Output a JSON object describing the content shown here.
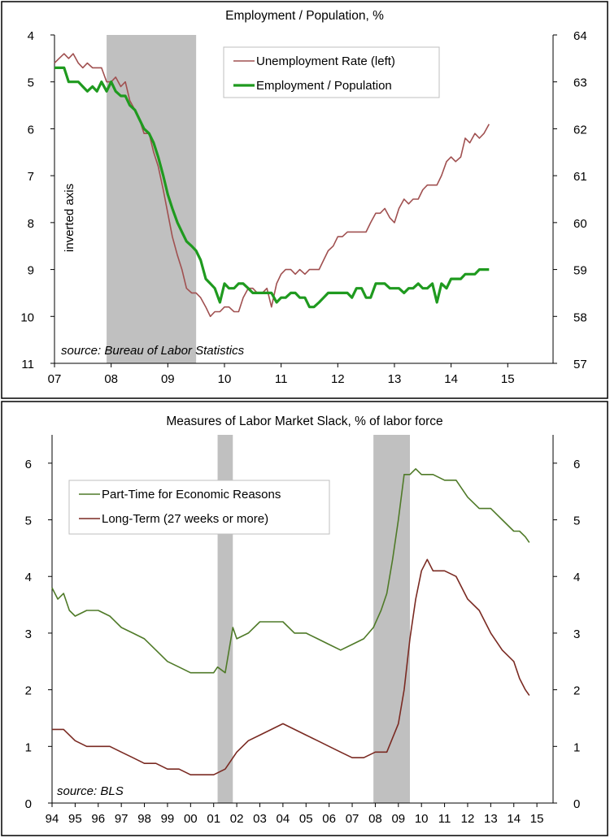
{
  "chart_data": [
    {
      "type": "line",
      "title": "Employment / Population, %",
      "annotation": "inverted axis",
      "source": "source: Bureau of Labor Statistics",
      "xlim": [
        2007.0,
        2015.8
      ],
      "x_ticks": [
        2007,
        2008,
        2009,
        2010,
        2011,
        2012,
        2013,
        2014,
        2015
      ],
      "x_tick_labels": [
        "07",
        "08",
        "09",
        "10",
        "11",
        "12",
        "13",
        "14",
        "15"
      ],
      "y_left": {
        "ylim": [
          4,
          11
        ],
        "inverted": true,
        "ticks": [
          4,
          5,
          6,
          7,
          8,
          9,
          10,
          11
        ]
      },
      "y_right": {
        "ylim": [
          57,
          64
        ],
        "ticks": [
          57,
          58,
          59,
          60,
          61,
          62,
          63,
          64
        ]
      },
      "recessions": [
        [
          2007.92,
          2009.5
        ]
      ],
      "legend": {
        "position": "top-right"
      },
      "series": [
        {
          "name": "Unemployment Rate (left)",
          "axis": "left",
          "color": "#a05050",
          "x": [
            2007.0,
            2007.08,
            2007.17,
            2007.25,
            2007.33,
            2007.42,
            2007.5,
            2007.58,
            2007.67,
            2007.75,
            2007.83,
            2007.92,
            2008.0,
            2008.08,
            2008.17,
            2008.25,
            2008.33,
            2008.42,
            2008.5,
            2008.58,
            2008.67,
            2008.75,
            2008.83,
            2008.92,
            2009.0,
            2009.08,
            2009.17,
            2009.25,
            2009.33,
            2009.42,
            2009.5,
            2009.58,
            2009.67,
            2009.75,
            2009.83,
            2009.92,
            2010.0,
            2010.08,
            2010.17,
            2010.25,
            2010.33,
            2010.42,
            2010.5,
            2010.58,
            2010.67,
            2010.75,
            2010.83,
            2010.92,
            2011.0,
            2011.08,
            2011.17,
            2011.25,
            2011.33,
            2011.42,
            2011.5,
            2011.58,
            2011.67,
            2011.75,
            2011.83,
            2011.92,
            2012.0,
            2012.08,
            2012.17,
            2012.25,
            2012.33,
            2012.42,
            2012.5,
            2012.58,
            2012.67,
            2012.75,
            2012.83,
            2012.92,
            2013.0,
            2013.08,
            2013.17,
            2013.25,
            2013.33,
            2013.42,
            2013.5,
            2013.58,
            2013.67,
            2013.75,
            2013.83,
            2013.92,
            2014.0,
            2014.08,
            2014.17,
            2014.25,
            2014.33,
            2014.42,
            2014.5,
            2014.58,
            2014.67
          ],
          "values": [
            4.6,
            4.5,
            4.4,
            4.5,
            4.4,
            4.6,
            4.7,
            4.6,
            4.7,
            4.7,
            4.7,
            5.0,
            5.0,
            4.9,
            5.1,
            5.0,
            5.4,
            5.6,
            5.8,
            6.1,
            6.1,
            6.5,
            6.8,
            7.3,
            7.8,
            8.3,
            8.7,
            9.0,
            9.4,
            9.5,
            9.5,
            9.6,
            9.8,
            10.0,
            9.9,
            9.9,
            9.8,
            9.8,
            9.9,
            9.9,
            9.6,
            9.4,
            9.4,
            9.5,
            9.5,
            9.4,
            9.8,
            9.3,
            9.1,
            9.0,
            9.0,
            9.1,
            9.0,
            9.1,
            9.0,
            9.0,
            9.0,
            8.8,
            8.6,
            8.5,
            8.3,
            8.3,
            8.2,
            8.2,
            8.2,
            8.2,
            8.2,
            8.0,
            7.8,
            7.8,
            7.7,
            7.9,
            8.0,
            7.7,
            7.5,
            7.6,
            7.5,
            7.5,
            7.3,
            7.2,
            7.2,
            7.2,
            7.0,
            6.7,
            6.6,
            6.7,
            6.6,
            6.2,
            6.3,
            6.1,
            6.2,
            6.1,
            5.9
          ]
        },
        {
          "name": "Employment / Population",
          "axis": "right",
          "color": "#1f9a1f",
          "x": [
            2007.0,
            2007.08,
            2007.17,
            2007.25,
            2007.33,
            2007.42,
            2007.5,
            2007.58,
            2007.67,
            2007.75,
            2007.83,
            2007.92,
            2008.0,
            2008.08,
            2008.17,
            2008.25,
            2008.33,
            2008.42,
            2008.5,
            2008.58,
            2008.67,
            2008.75,
            2008.83,
            2008.92,
            2009.0,
            2009.08,
            2009.17,
            2009.25,
            2009.33,
            2009.42,
            2009.5,
            2009.58,
            2009.67,
            2009.75,
            2009.83,
            2009.92,
            2010.0,
            2010.08,
            2010.17,
            2010.25,
            2010.33,
            2010.42,
            2010.5,
            2010.58,
            2010.67,
            2010.75,
            2010.83,
            2010.92,
            2011.0,
            2011.08,
            2011.17,
            2011.25,
            2011.33,
            2011.42,
            2011.5,
            2011.58,
            2011.67,
            2011.75,
            2011.83,
            2011.92,
            2012.0,
            2012.08,
            2012.17,
            2012.25,
            2012.33,
            2012.42,
            2012.5,
            2012.58,
            2012.67,
            2012.75,
            2012.83,
            2012.92,
            2013.0,
            2013.08,
            2013.17,
            2013.25,
            2013.33,
            2013.42,
            2013.5,
            2013.58,
            2013.67,
            2013.75,
            2013.83,
            2013.92,
            2014.0,
            2014.08,
            2014.17,
            2014.25,
            2014.33,
            2014.42,
            2014.5,
            2014.58,
            2014.67
          ],
          "values": [
            63.3,
            63.3,
            63.3,
            63.0,
            63.0,
            63.0,
            62.9,
            62.8,
            62.9,
            62.8,
            63.0,
            62.8,
            63.0,
            62.8,
            62.7,
            62.7,
            62.5,
            62.4,
            62.2,
            62.0,
            61.9,
            61.7,
            61.4,
            61.0,
            60.6,
            60.3,
            60.0,
            59.8,
            59.6,
            59.5,
            59.4,
            59.2,
            58.8,
            58.7,
            58.6,
            58.3,
            58.7,
            58.6,
            58.6,
            58.7,
            58.7,
            58.6,
            58.5,
            58.5,
            58.5,
            58.5,
            58.5,
            58.3,
            58.4,
            58.4,
            58.5,
            58.5,
            58.4,
            58.4,
            58.2,
            58.2,
            58.3,
            58.4,
            58.5,
            58.5,
            58.5,
            58.5,
            58.5,
            58.4,
            58.6,
            58.6,
            58.4,
            58.4,
            58.7,
            58.7,
            58.7,
            58.6,
            58.6,
            58.6,
            58.5,
            58.6,
            58.6,
            58.7,
            58.6,
            58.6,
            58.7,
            58.3,
            58.7,
            58.6,
            58.8,
            58.8,
            58.8,
            58.9,
            58.9,
            58.9,
            59.0,
            59.0,
            59.0
          ]
        }
      ]
    },
    {
      "type": "line",
      "title": "Measures of Labor Market Slack, % of labor force",
      "source": "source: BLS",
      "xlim": [
        1994.0,
        2015.7
      ],
      "x_ticks": [
        1994,
        1995,
        1996,
        1997,
        1998,
        1999,
        2000,
        2001,
        2002,
        2003,
        2004,
        2005,
        2006,
        2007,
        2008,
        2009,
        2010,
        2011,
        2012,
        2013,
        2014,
        2015
      ],
      "x_tick_labels": [
        "94",
        "95",
        "96",
        "97",
        "98",
        "99",
        "00",
        "01",
        "02",
        "03",
        "04",
        "05",
        "06",
        "07",
        "08",
        "09",
        "10",
        "11",
        "12",
        "13",
        "14",
        "15"
      ],
      "y_left": {
        "ylim": [
          0,
          6.5
        ],
        "ticks": [
          0,
          1,
          2,
          3,
          4,
          5,
          6
        ]
      },
      "y_right": {
        "ylim": [
          0,
          6.5
        ],
        "ticks": [
          0,
          1,
          2,
          3,
          4,
          5,
          6
        ]
      },
      "recessions": [
        [
          2001.17,
          2001.83
        ],
        [
          2007.92,
          2009.5
        ]
      ],
      "legend": {
        "position": "top-left"
      },
      "series": [
        {
          "name": "Part-Time for Economic Reasons",
          "color": "#4f7a28",
          "x": [
            1994.0,
            1994.25,
            1994.5,
            1994.75,
            1995.0,
            1995.5,
            1996.0,
            1996.5,
            1997.0,
            1997.5,
            1998.0,
            1998.5,
            1999.0,
            1999.5,
            2000.0,
            2000.5,
            2001.0,
            2001.17,
            2001.5,
            2001.83,
            2002.0,
            2002.5,
            2003.0,
            2003.5,
            2004.0,
            2004.5,
            2005.0,
            2005.5,
            2006.0,
            2006.5,
            2007.0,
            2007.5,
            2007.92,
            2008.25,
            2008.5,
            2008.75,
            2009.0,
            2009.25,
            2009.5,
            2009.75,
            2010.0,
            2010.5,
            2011.0,
            2011.5,
            2012.0,
            2012.5,
            2013.0,
            2013.5,
            2014.0,
            2014.25,
            2014.5,
            2014.67
          ],
          "values": [
            3.8,
            3.6,
            3.7,
            3.4,
            3.3,
            3.4,
            3.4,
            3.3,
            3.1,
            3.0,
            2.9,
            2.7,
            2.5,
            2.4,
            2.3,
            2.3,
            2.3,
            2.4,
            2.3,
            3.1,
            2.9,
            3.0,
            3.2,
            3.2,
            3.2,
            3.0,
            3.0,
            2.9,
            2.8,
            2.7,
            2.8,
            2.9,
            3.1,
            3.4,
            3.7,
            4.3,
            5.0,
            5.8,
            5.8,
            5.9,
            5.8,
            5.8,
            5.7,
            5.7,
            5.4,
            5.2,
            5.2,
            5.0,
            4.8,
            4.8,
            4.7,
            4.6
          ]
        },
        {
          "name": "Long-Term (27 weeks or more)",
          "color": "#7a2a22",
          "x": [
            1994.0,
            1994.5,
            1995.0,
            1995.5,
            1996.0,
            1996.5,
            1997.0,
            1997.5,
            1998.0,
            1998.5,
            1999.0,
            1999.5,
            2000.0,
            2000.5,
            2001.0,
            2001.5,
            2002.0,
            2002.5,
            2003.0,
            2003.5,
            2004.0,
            2004.5,
            2005.0,
            2005.5,
            2006.0,
            2006.5,
            2007.0,
            2007.5,
            2008.0,
            2008.5,
            2009.0,
            2009.25,
            2009.5,
            2009.75,
            2010.0,
            2010.25,
            2010.5,
            2011.0,
            2011.5,
            2012.0,
            2012.5,
            2013.0,
            2013.5,
            2014.0,
            2014.25,
            2014.5,
            2014.67
          ],
          "values": [
            1.3,
            1.3,
            1.1,
            1.0,
            1.0,
            1.0,
            0.9,
            0.8,
            0.7,
            0.7,
            0.6,
            0.6,
            0.5,
            0.5,
            0.5,
            0.6,
            0.9,
            1.1,
            1.2,
            1.3,
            1.4,
            1.3,
            1.2,
            1.1,
            1.0,
            0.9,
            0.8,
            0.8,
            0.9,
            0.9,
            1.4,
            2.0,
            2.9,
            3.6,
            4.1,
            4.3,
            4.1,
            4.1,
            4.0,
            3.6,
            3.4,
            3.0,
            2.7,
            2.5,
            2.2,
            2.0,
            1.9
          ]
        }
      ]
    }
  ]
}
